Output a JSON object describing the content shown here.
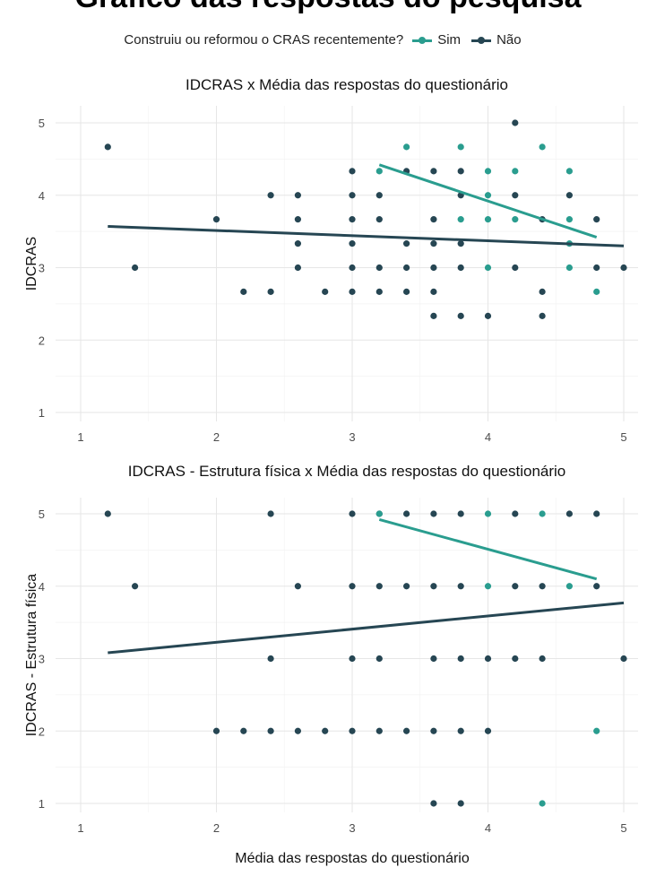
{
  "page": {
    "title": "Gráfico das respostas do pesquisa"
  },
  "legend": {
    "title": "Construiu ou reformou o CRAS recentemente?",
    "items": [
      {
        "label": "Sim",
        "color": "#2a9d8f"
      },
      {
        "label": "Não",
        "color": "#264653"
      }
    ]
  },
  "chart_data": [
    {
      "type": "scatter",
      "title": "IDCRAS x Média das respostas do questionário",
      "xlabel": "",
      "ylabel": "IDCRAS",
      "xlim": [
        1,
        5
      ],
      "ylim": [
        1,
        5
      ],
      "xticks": [
        "1",
        "2",
        "3",
        "4",
        "5"
      ],
      "yticks": [
        "1",
        "2",
        "3",
        "4",
        "5"
      ],
      "grid": true,
      "series": [
        {
          "name": "Sim",
          "color": "#2a9d8f",
          "points": [
            [
              3.2,
              4.333
            ],
            [
              3.4,
              4.667
            ],
            [
              3.8,
              4.667
            ],
            [
              3.8,
              3.667
            ],
            [
              4.0,
              4.333
            ],
            [
              4.0,
              4.0
            ],
            [
              4.0,
              3.667
            ],
            [
              4.0,
              3.0
            ],
            [
              4.2,
              4.333
            ],
            [
              4.2,
              3.667
            ],
            [
              4.4,
              4.667
            ],
            [
              4.6,
              4.333
            ],
            [
              4.6,
              3.667
            ],
            [
              4.6,
              3.333
            ],
            [
              4.6,
              3.0
            ],
            [
              4.8,
              2.667
            ]
          ],
          "trend": [
            [
              3.2,
              4.42
            ],
            [
              4.8,
              3.42
            ]
          ]
        },
        {
          "name": "Não",
          "color": "#264653",
          "points": [
            [
              1.2,
              4.667
            ],
            [
              1.4,
              3.0
            ],
            [
              2.0,
              3.667
            ],
            [
              2.2,
              2.667
            ],
            [
              2.4,
              4.0
            ],
            [
              2.4,
              2.667
            ],
            [
              2.6,
              4.0
            ],
            [
              2.6,
              3.667
            ],
            [
              2.6,
              3.333
            ],
            [
              2.6,
              3.0
            ],
            [
              2.8,
              2.667
            ],
            [
              3.0,
              4.333
            ],
            [
              3.0,
              4.0
            ],
            [
              3.0,
              3.667
            ],
            [
              3.0,
              3.333
            ],
            [
              3.0,
              3.0
            ],
            [
              3.0,
              2.667
            ],
            [
              3.2,
              4.0
            ],
            [
              3.2,
              3.667
            ],
            [
              3.2,
              3.0
            ],
            [
              3.2,
              2.667
            ],
            [
              3.4,
              4.333
            ],
            [
              3.4,
              3.333
            ],
            [
              3.4,
              3.0
            ],
            [
              3.4,
              2.667
            ],
            [
              3.6,
              4.333
            ],
            [
              3.6,
              3.667
            ],
            [
              3.6,
              3.333
            ],
            [
              3.6,
              3.0
            ],
            [
              3.6,
              2.667
            ],
            [
              3.6,
              2.333
            ],
            [
              3.8,
              4.333
            ],
            [
              3.8,
              4.0
            ],
            [
              3.8,
              3.333
            ],
            [
              3.8,
              3.0
            ],
            [
              3.8,
              2.333
            ],
            [
              4.0,
              2.333
            ],
            [
              4.2,
              5.0
            ],
            [
              4.2,
              4.0
            ],
            [
              4.2,
              3.0
            ],
            [
              4.4,
              3.667
            ],
            [
              4.4,
              2.667
            ],
            [
              4.4,
              2.333
            ],
            [
              4.6,
              4.0
            ],
            [
              4.8,
              3.667
            ],
            [
              4.8,
              3.0
            ],
            [
              5.0,
              3.0
            ]
          ],
          "trend": [
            [
              1.2,
              3.57
            ],
            [
              5.0,
              3.3
            ]
          ]
        }
      ]
    },
    {
      "type": "scatter",
      "title": "IDCRAS - Estrutura física x Média das respostas do questionário",
      "xlabel": "Média das respostas do questionário",
      "ylabel": "IDCRAS - Estrutura física",
      "xlim": [
        1,
        5
      ],
      "ylim": [
        1,
        5
      ],
      "xticks": [
        "1",
        "2",
        "3",
        "4",
        "5"
      ],
      "yticks": [
        "1",
        "2",
        "3",
        "4",
        "5"
      ],
      "grid": true,
      "series": [
        {
          "name": "Sim",
          "color": "#2a9d8f",
          "points": [
            [
              3.2,
              5.0
            ],
            [
              4.0,
              5.0
            ],
            [
              4.4,
              5.0
            ],
            [
              4.0,
              4.0
            ],
            [
              4.6,
              4.0
            ],
            [
              4.8,
              2.0
            ],
            [
              4.4,
              1.0
            ]
          ],
          "trend": [
            [
              3.2,
              4.92
            ],
            [
              4.8,
              4.1
            ]
          ]
        },
        {
          "name": "Não",
          "color": "#264653",
          "points": [
            [
              1.2,
              5.0
            ],
            [
              1.4,
              4.0
            ],
            [
              2.0,
              2.0
            ],
            [
              2.2,
              2.0
            ],
            [
              2.4,
              5.0
            ],
            [
              2.4,
              3.0
            ],
            [
              2.4,
              2.0
            ],
            [
              2.6,
              4.0
            ],
            [
              2.6,
              2.0
            ],
            [
              2.8,
              2.0
            ],
            [
              3.0,
              5.0
            ],
            [
              3.0,
              4.0
            ],
            [
              3.0,
              3.0
            ],
            [
              3.0,
              2.0
            ],
            [
              3.2,
              5.0
            ],
            [
              3.2,
              4.0
            ],
            [
              3.2,
              3.0
            ],
            [
              3.2,
              2.0
            ],
            [
              3.4,
              5.0
            ],
            [
              3.4,
              4.0
            ],
            [
              3.4,
              2.0
            ],
            [
              3.6,
              5.0
            ],
            [
              3.6,
              4.0
            ],
            [
              3.6,
              3.0
            ],
            [
              3.6,
              2.0
            ],
            [
              3.6,
              1.0
            ],
            [
              3.8,
              5.0
            ],
            [
              3.8,
              4.0
            ],
            [
              3.8,
              3.0
            ],
            [
              3.8,
              2.0
            ],
            [
              3.8,
              1.0
            ],
            [
              4.0,
              3.0
            ],
            [
              4.0,
              2.0
            ],
            [
              4.2,
              5.0
            ],
            [
              4.2,
              4.0
            ],
            [
              4.2,
              3.0
            ],
            [
              4.4,
              4.0
            ],
            [
              4.4,
              3.0
            ],
            [
              4.6,
              5.0
            ],
            [
              4.8,
              5.0
            ],
            [
              4.8,
              4.0
            ],
            [
              5.0,
              3.0
            ]
          ],
          "trend": [
            [
              1.2,
              3.08
            ],
            [
              5.0,
              3.77
            ]
          ]
        }
      ]
    }
  ]
}
